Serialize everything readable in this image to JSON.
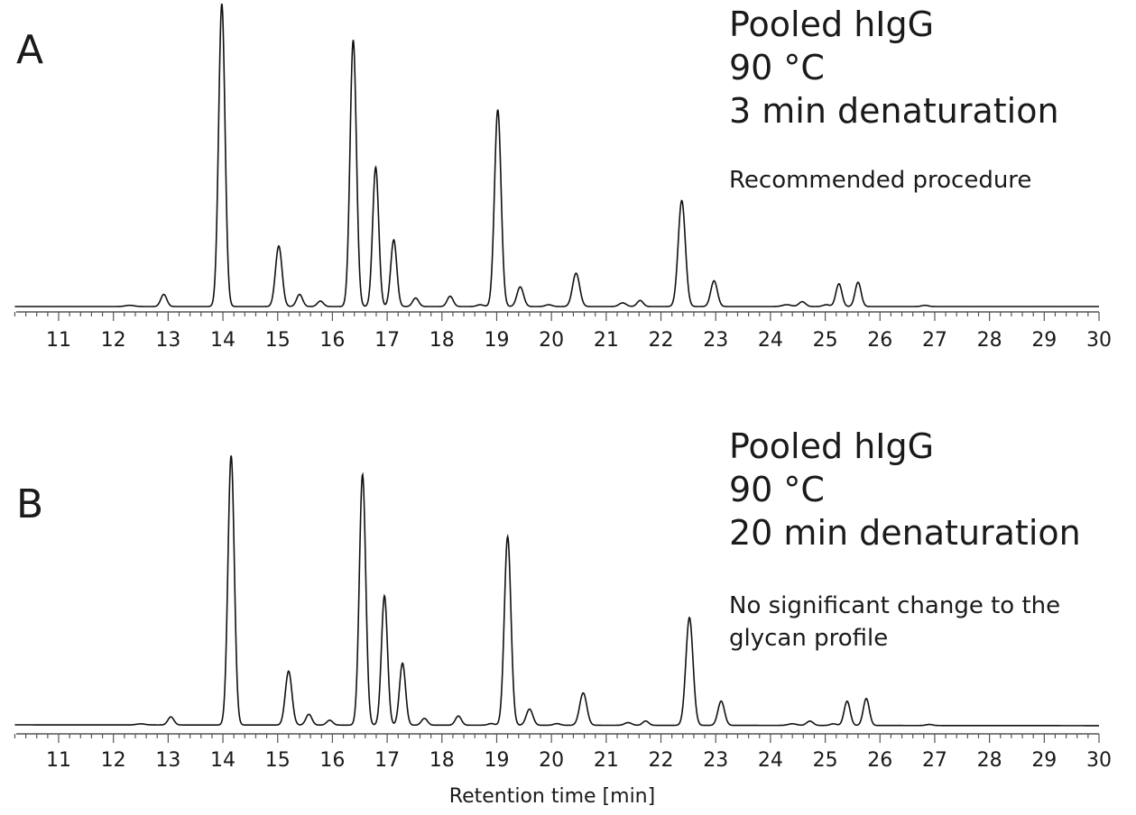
{
  "chart_data": [
    {
      "type": "line",
      "panel": "A",
      "annotations": [
        "Pooled hIgG",
        "90 °C",
        "3 min denaturation"
      ],
      "note": [
        "Recommended procedure"
      ],
      "xlabel": "",
      "ylabel": "",
      "xlim": [
        10.2,
        30
      ],
      "x_ticks": [
        "11",
        "12",
        "13",
        "14",
        "15",
        "16",
        "17",
        "18",
        "19",
        "20",
        "21",
        "22",
        "23",
        "24",
        "25",
        "26",
        "27",
        "28",
        "29",
        "30"
      ],
      "y_ticks": [],
      "grid": false,
      "peaks": [
        {
          "x": 12.3,
          "height": 0.004,
          "width": 0.08
        },
        {
          "x": 12.92,
          "height": 0.04,
          "width": 0.055
        },
        {
          "x": 13.98,
          "height": 1.0,
          "width": 0.058
        },
        {
          "x": 15.02,
          "height": 0.2,
          "width": 0.06
        },
        {
          "x": 15.4,
          "height": 0.04,
          "width": 0.055
        },
        {
          "x": 15.78,
          "height": 0.018,
          "width": 0.055
        },
        {
          "x": 16.38,
          "height": 0.88,
          "width": 0.058
        },
        {
          "x": 16.79,
          "height": 0.46,
          "width": 0.055
        },
        {
          "x": 17.12,
          "height": 0.22,
          "width": 0.055
        },
        {
          "x": 17.52,
          "height": 0.028,
          "width": 0.055
        },
        {
          "x": 18.15,
          "height": 0.034,
          "width": 0.055
        },
        {
          "x": 18.7,
          "height": 0.006,
          "width": 0.06
        },
        {
          "x": 19.02,
          "height": 0.65,
          "width": 0.06
        },
        {
          "x": 19.43,
          "height": 0.065,
          "width": 0.06
        },
        {
          "x": 19.95,
          "height": 0.006,
          "width": 0.06
        },
        {
          "x": 20.45,
          "height": 0.11,
          "width": 0.065
        },
        {
          "x": 21.3,
          "height": 0.012,
          "width": 0.065
        },
        {
          "x": 21.62,
          "height": 0.02,
          "width": 0.055
        },
        {
          "x": 22.38,
          "height": 0.35,
          "width": 0.065
        },
        {
          "x": 22.97,
          "height": 0.085,
          "width": 0.06
        },
        {
          "x": 24.3,
          "height": 0.006,
          "width": 0.08
        },
        {
          "x": 24.58,
          "height": 0.016,
          "width": 0.06
        },
        {
          "x": 25.02,
          "height": 0.006,
          "width": 0.06
        },
        {
          "x": 25.25,
          "height": 0.075,
          "width": 0.055
        },
        {
          "x": 25.6,
          "height": 0.08,
          "width": 0.055
        },
        {
          "x": 26.82,
          "height": 0.004,
          "width": 0.06
        }
      ]
    },
    {
      "type": "line",
      "panel": "B",
      "annotations": [
        "Pooled hIgG",
        "90 °C",
        "20 min denaturation"
      ],
      "note": [
        "No significant change to the",
        "glycan profile"
      ],
      "xlabel": "Retention time [min]",
      "ylabel": "",
      "xlim": [
        10.2,
        30
      ],
      "x_ticks": [
        "11",
        "12",
        "13",
        "14",
        "15",
        "16",
        "17",
        "18",
        "19",
        "20",
        "21",
        "22",
        "23",
        "24",
        "25",
        "26",
        "27",
        "28",
        "29",
        "30"
      ],
      "y_ticks": [],
      "grid": false,
      "peaks": [
        {
          "x": 12.5,
          "height": 0.004,
          "width": 0.08
        },
        {
          "x": 13.05,
          "height": 0.03,
          "width": 0.055
        },
        {
          "x": 14.15,
          "height": 1.0,
          "width": 0.058
        },
        {
          "x": 15.2,
          "height": 0.2,
          "width": 0.06
        },
        {
          "x": 15.57,
          "height": 0.04,
          "width": 0.055
        },
        {
          "x": 15.95,
          "height": 0.018,
          "width": 0.055
        },
        {
          "x": 16.55,
          "height": 0.93,
          "width": 0.058
        },
        {
          "x": 16.95,
          "height": 0.48,
          "width": 0.055
        },
        {
          "x": 17.28,
          "height": 0.23,
          "width": 0.055
        },
        {
          "x": 17.68,
          "height": 0.025,
          "width": 0.055
        },
        {
          "x": 18.3,
          "height": 0.034,
          "width": 0.055
        },
        {
          "x": 18.9,
          "height": 0.006,
          "width": 0.06
        },
        {
          "x": 19.2,
          "height": 0.7,
          "width": 0.06
        },
        {
          "x": 19.6,
          "height": 0.06,
          "width": 0.06
        },
        {
          "x": 20.1,
          "height": 0.006,
          "width": 0.06
        },
        {
          "x": 20.58,
          "height": 0.12,
          "width": 0.065
        },
        {
          "x": 21.4,
          "height": 0.01,
          "width": 0.065
        },
        {
          "x": 21.72,
          "height": 0.016,
          "width": 0.055
        },
        {
          "x": 22.52,
          "height": 0.4,
          "width": 0.065
        },
        {
          "x": 23.1,
          "height": 0.09,
          "width": 0.06
        },
        {
          "x": 24.4,
          "height": 0.006,
          "width": 0.08
        },
        {
          "x": 24.72,
          "height": 0.016,
          "width": 0.06
        },
        {
          "x": 25.15,
          "height": 0.006,
          "width": 0.06
        },
        {
          "x": 25.4,
          "height": 0.09,
          "width": 0.055
        },
        {
          "x": 25.75,
          "height": 0.1,
          "width": 0.055
        },
        {
          "x": 26.9,
          "height": 0.004,
          "width": 0.06
        }
      ]
    }
  ]
}
